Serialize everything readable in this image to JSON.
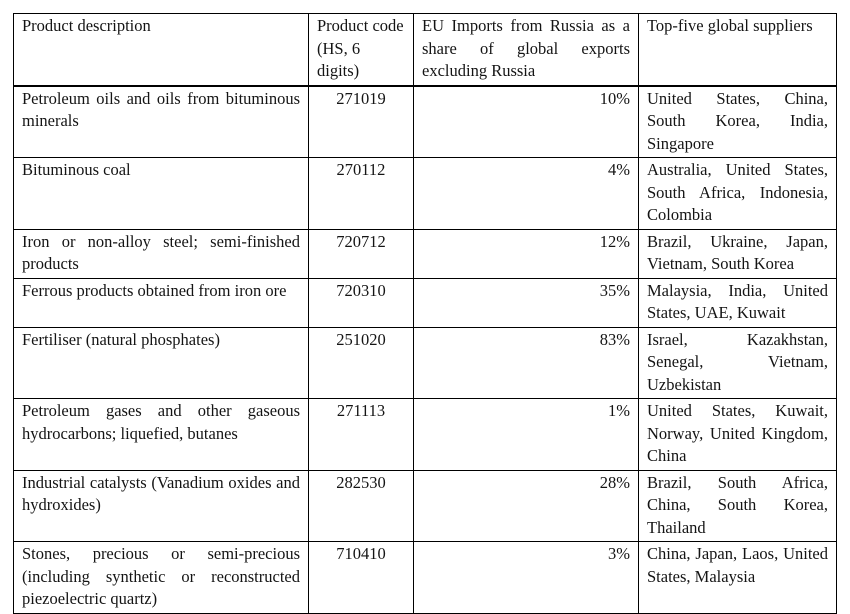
{
  "colors": {
    "text": "#141414",
    "border": "#000000",
    "background": "#ffffff"
  },
  "table": {
    "headers": {
      "description": "Product description",
      "code": "Product code (HS, 6 digits)",
      "share": "EU Imports from Russia as a share of global exports excluding Russia",
      "suppliers": "Top-five global suppliers"
    },
    "rows": [
      {
        "description": "Petroleum oils and oils from bituminous minerals",
        "code": "271019",
        "share": "10%",
        "suppliers": "United States, China, South Korea, India, Singapore"
      },
      {
        "description": "Bituminous coal",
        "code": "270112",
        "share": "4%",
        "suppliers": "Australia, United States, South Africa, Indonesia, Colombia"
      },
      {
        "description": "Iron or non-alloy steel; semi-finished products",
        "code": "720712",
        "share": "12%",
        "suppliers": "Brazil, Ukraine, Japan, Vietnam, South Korea"
      },
      {
        "description": "Ferrous products obtained from iron ore",
        "code": "720310",
        "share": "35%",
        "suppliers": "Malaysia, India, United States, UAE, Kuwait"
      },
      {
        "description": "Fertiliser (natural phosphates)",
        "code": "251020",
        "share": "83%",
        "suppliers": "Israel, Kazakhstan, Senegal, Vietnam, Uzbekistan"
      },
      {
        "description": "Petroleum gases and other gaseous hydrocarbons; liquefied, butanes",
        "code": "271113",
        "share": "1%",
        "suppliers": "United States, Kuwait, Norway, United Kingdom, China"
      },
      {
        "description": "Industrial catalysts (Vanadium oxides and hydroxides)",
        "code": "282530",
        "share": "28%",
        "suppliers": "Brazil, South Africa, China, South Korea, Thailand"
      },
      {
        "description": "Stones, precious or semi-precious (including synthetic or reconstructed piezoelectric quartz)",
        "code": "710410",
        "share": "3%",
        "suppliers": "China, Japan, Laos, United States, Malaysia"
      }
    ]
  }
}
